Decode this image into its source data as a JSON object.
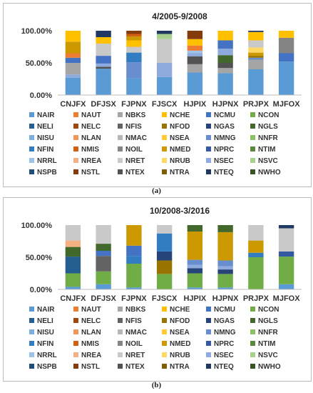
{
  "colors": {
    "NAIR": "#5b9bd5",
    "NAUT": "#ed7d31",
    "NBKS": "#a5a5a5",
    "NCHE": "#ffc000",
    "NCMU": "#4472c4",
    "NCON": "#70ad47",
    "NELI": "#255e91",
    "NELC": "#9e480e",
    "NFIS": "#636363",
    "NFOD": "#997300",
    "NGAS": "#264478",
    "NGLS": "#43682b",
    "NISU": "#7cafdd",
    "NLAN": "#f1975a",
    "NMAC": "#b7b7b7",
    "NSEA": "#ffcd33",
    "NMNG": "#698ed0",
    "NNFR": "#8cc168",
    "NFIN": "#327dc2",
    "NMIS": "#d26012",
    "NOIL": "#848484",
    "NMED": "#cc9a00",
    "NPRC": "#335aa1",
    "NTIM": "#5a8a39",
    "NRRL": "#9dc3e6",
    "NREA": "#f4b183",
    "NRET": "#c9c9c9",
    "NRUB": "#ffd966",
    "NSEC": "#8faadc",
    "NSVC": "#a9d18e",
    "NSPB": "#1f4e79",
    "NSTL": "#843c0c",
    "NTEX": "#525252",
    "NTRA": "#7f6000",
    "NTEQ": "#203864",
    "NWHO": "#375623"
  },
  "legend_entries": [
    "NAIR",
    "NAUT",
    "NBKS",
    "NCHE",
    "NCMU",
    "NCON",
    "NELI",
    "NELC",
    "NFIS",
    "NFOD",
    "NGAS",
    "NGLS",
    "NISU",
    "NLAN",
    "NMAC",
    "NSEA",
    "NMNG",
    "NNFR",
    "NFIN",
    "NMIS",
    "NOIL",
    "NMED",
    "NPRC",
    "NTIM",
    "NRRL",
    "NREA",
    "NRET",
    "NRUB",
    "NSEC",
    "NSVC",
    "NSPB",
    "NSTL",
    "NTEX",
    "NTRA",
    "NTEQ",
    "NWHO"
  ],
  "chart_data": [
    {
      "type": "bar",
      "stacked": true,
      "title": "4/2005-9/2008",
      "caption": "(a)",
      "categories": [
        "CNJFX",
        "DFJSX",
        "FJPNX",
        "FJSCX",
        "HJPIX",
        "HJPNX",
        "PRJPX",
        "MJFOX"
      ],
      "ylim": [
        0,
        100
      ],
      "yticks": [
        0,
        50,
        100
      ],
      "ytick_labels": [
        "0.00%",
        "50.00%",
        "100.00%"
      ],
      "grid": false,
      "legend_position": "bottom",
      "stacks": [
        [
          [
            "NAIR",
            27
          ],
          [
            "NSEC",
            5
          ],
          [
            "NBKS",
            18
          ],
          [
            "NCMU",
            8
          ],
          [
            "NAUT",
            7
          ],
          [
            "NMED",
            18
          ],
          [
            "NCHE",
            17
          ]
        ],
        [
          [
            "NAIR",
            41
          ],
          [
            "NTEX",
            3
          ],
          [
            "NSEC",
            5
          ],
          [
            "NCMU",
            12
          ],
          [
            "NRET",
            19
          ],
          [
            "NCHE",
            10
          ],
          [
            "NTEQ",
            10
          ]
        ],
        [
          [
            "NAIR",
            26
          ],
          [
            "NMNG",
            25
          ],
          [
            "NFIN",
            15
          ],
          [
            "NRET",
            9
          ],
          [
            "NCHE",
            10
          ],
          [
            "NMED",
            6
          ],
          [
            "NMIS",
            4
          ],
          [
            "NSTL",
            5
          ]
        ],
        [
          [
            "NAIR",
            28
          ],
          [
            "NSEC",
            22
          ],
          [
            "NRET",
            37
          ],
          [
            "NSVC",
            8
          ],
          [
            "NTEQ",
            5
          ]
        ],
        [
          [
            "NAIR",
            35
          ],
          [
            "NBKS",
            13
          ],
          [
            "NTEX",
            12
          ],
          [
            "NSEC",
            5
          ],
          [
            "NRRL",
            4
          ],
          [
            "NAUT",
            8
          ],
          [
            "NCHE",
            10
          ],
          [
            "NSTL",
            13
          ]
        ],
        [
          [
            "NAIR",
            34
          ],
          [
            "NBKS",
            8
          ],
          [
            "NTEX",
            8
          ],
          [
            "NGLS",
            12
          ],
          [
            "NSEC",
            10
          ],
          [
            "NCMU",
            13
          ],
          [
            "NCHE",
            15
          ]
        ],
        [
          [
            "NAIR",
            40
          ],
          [
            "NBKS",
            15
          ],
          [
            "NMNG",
            3
          ],
          [
            "NFOD",
            3
          ],
          [
            "NMED",
            5
          ],
          [
            "NRUB",
            8
          ],
          [
            "NRET",
            11
          ],
          [
            "NCHE",
            13
          ],
          [
            "NTEQ",
            2
          ]
        ],
        [
          [
            "NAIR",
            52
          ],
          [
            "NCMU",
            13
          ],
          [
            "NOIL",
            24
          ],
          [
            "NCHE",
            11
          ]
        ]
      ]
    },
    {
      "type": "bar",
      "stacked": true,
      "title": "10/2008-3/2016",
      "caption": "(b)",
      "categories": [
        "CNJFX",
        "DFJSX",
        "FJPNX",
        "FJSCX",
        "HJPIX",
        "HJPNX",
        "PRJPX",
        "MJFOX"
      ],
      "ylim": [
        0,
        100
      ],
      "yticks": [
        0,
        50,
        100
      ],
      "ytick_labels": [
        "0.00%",
        "50.00%",
        "100.00%"
      ],
      "grid": false,
      "legend_position": "bottom",
      "stacks": [
        [
          [
            "NAIR",
            4
          ],
          [
            "NCON",
            21
          ],
          [
            "NELI",
            26
          ],
          [
            "NGLS",
            15
          ],
          [
            "NREA",
            10
          ],
          [
            "NRET",
            24
          ]
        ],
        [
          [
            "NAIR",
            8
          ],
          [
            "NCON",
            20
          ],
          [
            "NFIS",
            24
          ],
          [
            "NCMU",
            8
          ],
          [
            "NGLS",
            11
          ],
          [
            "NRET",
            29
          ]
        ],
        [
          [
            "NAIR",
            3
          ],
          [
            "NCON",
            37
          ],
          [
            "NFIN",
            12
          ],
          [
            "NCMU",
            16
          ],
          [
            "NMED",
            32
          ]
        ],
        [
          [
            "NCON",
            24
          ],
          [
            "NFOD",
            21
          ],
          [
            "NGAS",
            14
          ],
          [
            "NFIN",
            28
          ],
          [
            "NRET",
            13
          ]
        ],
        [
          [
            "NAIR",
            3
          ],
          [
            "NCON",
            22
          ],
          [
            "NGAS",
            8
          ],
          [
            "NSEC",
            5
          ],
          [
            "NMNG",
            8
          ],
          [
            "NMED",
            44
          ],
          [
            "NGLS",
            10
          ]
        ],
        [
          [
            "NAIR",
            3
          ],
          [
            "NCON",
            21
          ],
          [
            "NGAS",
            7
          ],
          [
            "NSEC",
            5
          ],
          [
            "NMNG",
            9
          ],
          [
            "NMED",
            44
          ],
          [
            "NGLS",
            11
          ]
        ],
        [
          [
            "NCON",
            50
          ],
          [
            "NFIN",
            7
          ],
          [
            "NMED",
            19
          ],
          [
            "NRET",
            24
          ]
        ],
        [
          [
            "NAIR",
            8
          ],
          [
            "NCON",
            43
          ],
          [
            "NPRC",
            8
          ],
          [
            "NRET",
            36
          ],
          [
            "NTEQ",
            5
          ]
        ]
      ]
    }
  ]
}
